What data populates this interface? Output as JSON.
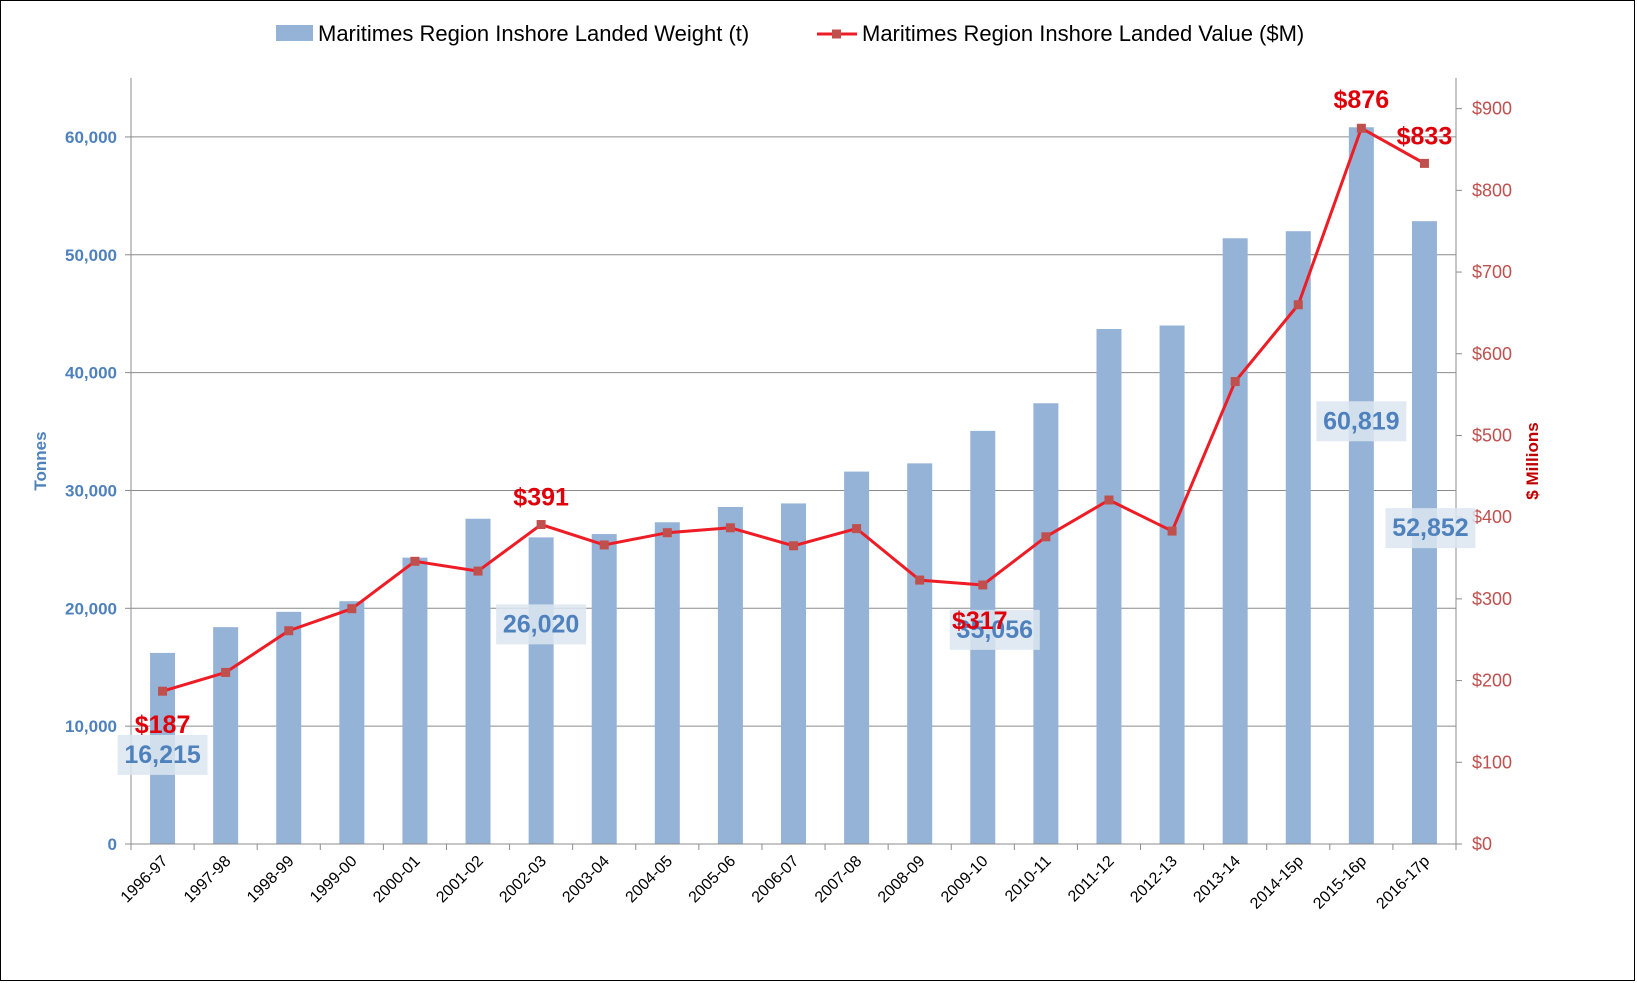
{
  "chart_data": {
    "type": "bar",
    "categories": [
      "1996-97",
      "1997-98",
      "1998-99",
      "1999-00",
      "2000-01",
      "2001-02",
      "2002-03",
      "2003-04",
      "2004-05",
      "2005-06",
      "2006-07",
      "2007-08",
      "2008-09",
      "2009-10",
      "2010-11",
      "2011-12",
      "2012-13",
      "2013-14",
      "2014-15p",
      "2015-16p",
      "2016-17p"
    ],
    "series": [
      {
        "name": "Maritimes Region Inshore Landed Weight (t)",
        "type": "bar",
        "axis": "left",
        "color": "#95b3d7",
        "values": [
          16215,
          18400,
          19700,
          20600,
          24300,
          27600,
          26020,
          26300,
          27300,
          28600,
          28900,
          31600,
          32300,
          35056,
          37400,
          43700,
          44000,
          51400,
          52000,
          60819,
          52852
        ]
      },
      {
        "name": "Maritimes Region Inshore Landed Value ($M)",
        "type": "line",
        "axis": "right",
        "color": "#ee1c25",
        "marker_color": "#c0504d",
        "values": [
          187,
          210,
          261,
          288,
          346,
          334,
          391,
          366,
          381,
          387,
          365,
          386,
          323,
          317,
          376,
          421,
          383,
          566,
          660,
          876,
          833
        ]
      }
    ],
    "ylabel": "Tonnes",
    "ylabel_right": "$ Millions",
    "ylim": [
      0,
      65000
    ],
    "ylim_right": [
      0,
      937.5
    ],
    "yticks": [
      "0",
      "10,000",
      "20,000",
      "30,000",
      "40,000",
      "50,000",
      "60,000"
    ],
    "yticks_right": [
      "$0",
      "$100",
      "$200",
      "$300",
      "$400",
      "$500",
      "$600",
      "$700",
      "$800",
      "$900"
    ],
    "grid": true,
    "legend_position": "top",
    "value_labels": [
      {
        "index": 0,
        "text": "$187"
      },
      {
        "index": 6,
        "text": "$391"
      },
      {
        "index": 13,
        "text": "$317"
      },
      {
        "index": 19,
        "text": "$876"
      },
      {
        "index": 20,
        "text": "$833"
      }
    ],
    "weight_labels": [
      {
        "index": 0,
        "text": "16,215"
      },
      {
        "index": 6,
        "text": "26,020"
      },
      {
        "index": 13,
        "text": "35,056"
      },
      {
        "index": 19,
        "text": "60,819"
      },
      {
        "index": 20,
        "text": "52,852"
      }
    ]
  }
}
